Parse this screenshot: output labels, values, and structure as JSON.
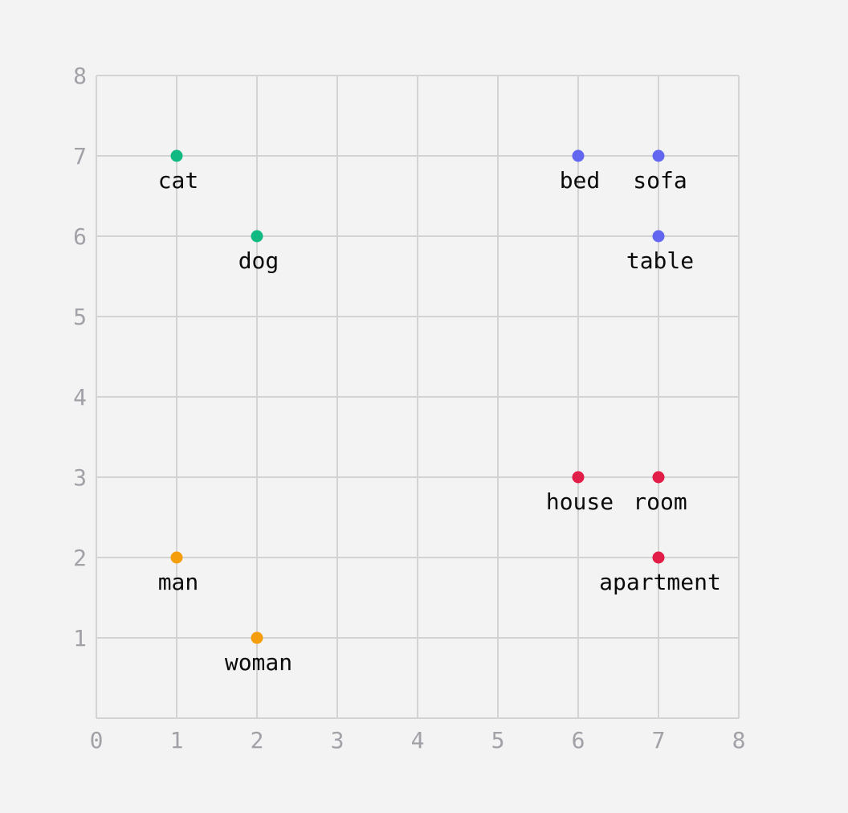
{
  "chart_data": {
    "type": "scatter",
    "title": "",
    "xlabel": "",
    "ylabel": "",
    "xlim": [
      0,
      8
    ],
    "ylim": [
      0,
      8
    ],
    "grid": true,
    "x_ticks": [
      "0",
      "1",
      "2",
      "3",
      "4",
      "5",
      "6",
      "7",
      "8"
    ],
    "y_ticks": [
      "1",
      "2",
      "3",
      "4",
      "5",
      "6",
      "7",
      "8"
    ],
    "series": [
      {
        "color": "#10b981",
        "points": [
          {
            "label": "cat",
            "x": 1,
            "y": 7
          },
          {
            "label": "dog",
            "x": 2,
            "y": 6
          }
        ]
      },
      {
        "color": "#6366f1",
        "points": [
          {
            "label": "bed",
            "x": 6,
            "y": 7
          },
          {
            "label": "sofa",
            "x": 7,
            "y": 7
          },
          {
            "label": "table",
            "x": 7,
            "y": 6
          }
        ]
      },
      {
        "color": "#e11d48",
        "points": [
          {
            "label": "house",
            "x": 6,
            "y": 3
          },
          {
            "label": "room",
            "x": 7,
            "y": 3
          },
          {
            "label": "apartment",
            "x": 7,
            "y": 2
          }
        ]
      },
      {
        "color": "#f59e0b",
        "points": [
          {
            "label": "man",
            "x": 1,
            "y": 2
          },
          {
            "label": "woman",
            "x": 2,
            "y": 1
          }
        ]
      }
    ]
  }
}
